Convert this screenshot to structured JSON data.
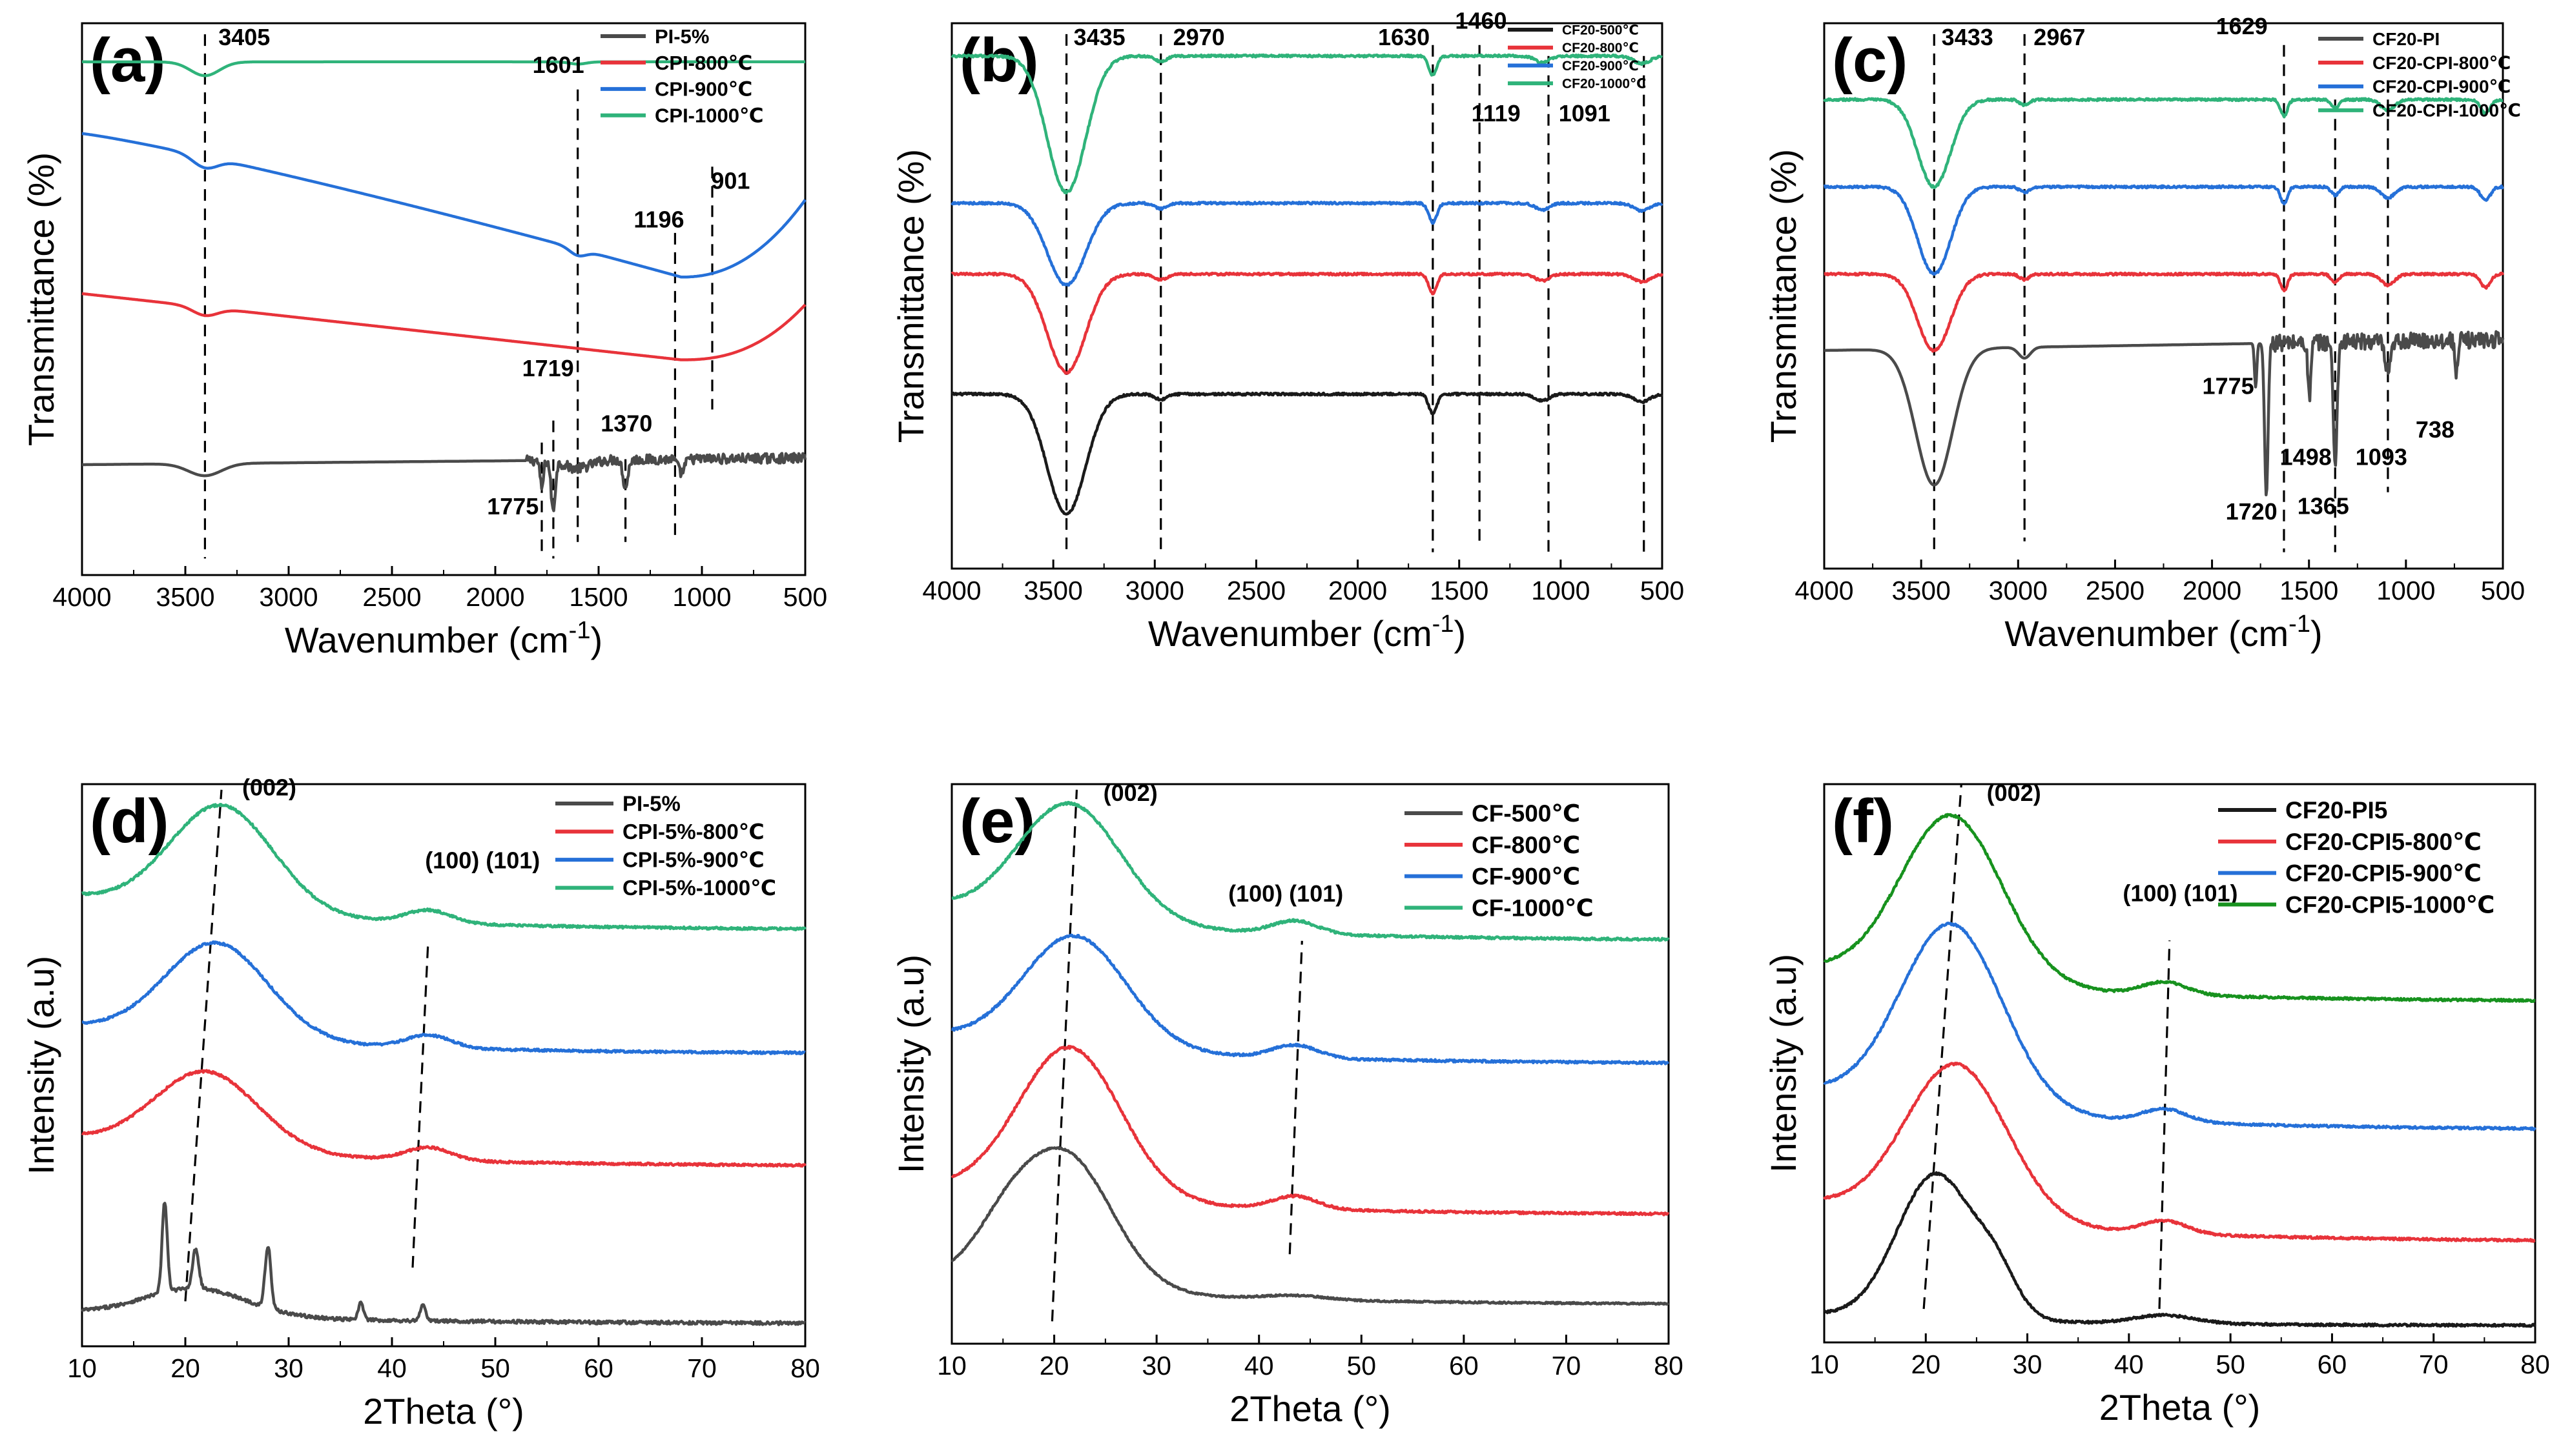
{
  "figure": {
    "colors": {
      "black": "#1a1a1a",
      "gray": "#4a4a4a",
      "red": "#e8333a",
      "blue": "#2570d8",
      "green": "#2fb37a",
      "dkgreen": "#17921e"
    }
  },
  "chart_data": [
    {
      "id": "a",
      "panel_label": "(a)",
      "type": "line",
      "xlabel": "Wavenumber (cm-1)",
      "ylabel": "Transmittance (%)",
      "xlim": [
        4000,
        500
      ],
      "xticks": [
        4000,
        3500,
        3000,
        2500,
        2000,
        1500,
        1000,
        500
      ],
      "xticklabels": [
        "4000",
        "3500",
        "3000",
        "2500",
        "2000",
        "1500",
        "1000",
        "500"
      ],
      "ylim": [
        0,
        100
      ],
      "y_ticks_shown": false,
      "legend_items": [
        "PI-5%",
        "CPI-800℃",
        "CPI-900℃",
        "CPI-1000℃"
      ],
      "annotations": [
        "3405",
        "1601",
        "1196",
        "901",
        "1719",
        "1370",
        "1775"
      ],
      "series": [
        {
          "name": "PI-5%",
          "color": "gray",
          "kind": "pi_ftir",
          "baseline": 20,
          "x0": 3405
        },
        {
          "name": "CPI-800℃",
          "color": "red",
          "kind": "ftir_a800",
          "baseline": 50
        },
        {
          "name": "CPI-900℃",
          "color": "blue",
          "kind": "ftir_a900",
          "baseline": 76
        },
        {
          "name": "CPI-1000℃",
          "color": "green",
          "kind": "ftir_flat",
          "baseline": 93,
          "x0": 3405
        }
      ]
    },
    {
      "id": "b",
      "panel_label": "(b)",
      "type": "line",
      "xlabel": "Wavenumber (cm-1)",
      "ylabel": "Transmittance (%)",
      "xlim": [
        4000,
        500
      ],
      "xticks": [
        4000,
        3500,
        3000,
        2500,
        2000,
        1500,
        1000,
        500
      ],
      "xticklabels": [
        "4000",
        "3500",
        "3000",
        "2500",
        "2000",
        "1500",
        "1000",
        "500"
      ],
      "ylim": [
        0,
        100
      ],
      "y_ticks_shown": false,
      "legend_items": [
        "CF20-500℃",
        "CF20-800℃",
        "CF20-900℃",
        "CF20-1000℃"
      ],
      "annotations": [
        "3435",
        "2970",
        "1630",
        "1460",
        "1119",
        "1091"
      ],
      "series": [
        {
          "name": "CF20-500℃",
          "color": "black",
          "kind": "ftir_cf",
          "baseline": 32,
          "depth": 22,
          "x0": 3435
        },
        {
          "name": "CF20-800℃",
          "color": "red",
          "kind": "ftir_cf",
          "baseline": 54,
          "depth": 18,
          "x0": 3435
        },
        {
          "name": "CF20-900℃",
          "color": "blue",
          "kind": "ftir_cf",
          "baseline": 67,
          "depth": 15,
          "x0": 3435
        },
        {
          "name": "CF20-1000℃",
          "color": "green",
          "kind": "ftir_cf",
          "baseline": 94,
          "depth": 25,
          "x0": 3435
        }
      ]
    },
    {
      "id": "c",
      "panel_label": "(c)",
      "type": "line",
      "xlabel": "Wavenumber (cm-1)",
      "ylabel": "Transmittance (%)",
      "xlim": [
        4000,
        500
      ],
      "xticks": [
        4000,
        3500,
        3000,
        2500,
        2000,
        1500,
        1000,
        500
      ],
      "xticklabels": [
        "4000",
        "3500",
        "3000",
        "2500",
        "2000",
        "1500",
        "1000",
        "500"
      ],
      "ylim": [
        0,
        100
      ],
      "y_ticks_shown": false,
      "legend_items": [
        "CF20-PI",
        "CF20-CPI-800℃",
        "CF20-CPI-900℃",
        "CF20-CPI-1000℃"
      ],
      "annotations": [
        "3433",
        "2967",
        "1629",
        "1775",
        "1498",
        "1093",
        "738",
        "1720",
        "1365"
      ],
      "series": [
        {
          "name": "CF20-PI",
          "color": "gray",
          "kind": "pi_c",
          "baseline": 40,
          "depth": 25,
          "x0": 3433
        },
        {
          "name": "CF20-CPI-800℃",
          "color": "red",
          "kind": "ftir_c",
          "baseline": 54,
          "depth": 14,
          "x0": 3433
        },
        {
          "name": "CF20-CPI-900℃",
          "color": "blue",
          "kind": "ftir_c",
          "baseline": 70,
          "depth": 16,
          "x0": 3433
        },
        {
          "name": "CF20-CPI-1000℃",
          "color": "green",
          "kind": "ftir_c",
          "baseline": 86,
          "depth": 16,
          "x0": 3433
        }
      ]
    },
    {
      "id": "d",
      "panel_label": "(d)",
      "type": "line",
      "xlabel": "2Theta (°)",
      "ylabel": "Intensity (a.u)",
      "xlim": [
        10,
        80
      ],
      "xticks": [
        10,
        20,
        30,
        40,
        50,
        60,
        70,
        80
      ],
      "xticklabels": [
        "10",
        "20",
        "30",
        "40",
        "50",
        "60",
        "70",
        "80"
      ],
      "ylim": [
        0,
        100
      ],
      "y_ticks_shown": false,
      "legend_items": [
        "PI-5%",
        "CPI-5%-800℃",
        "CPI-5%-900℃",
        "CPI-5%-1000℃"
      ],
      "annotations": [
        "(002)",
        "(100) (101)"
      ],
      "series": [
        {
          "name": "PI-5%",
          "color": "gray",
          "kind": "xrd_pi",
          "base": 4,
          "h": 16
        },
        {
          "name": "CPI-5%-800℃",
          "color": "red",
          "kind": "xrd",
          "base": 32,
          "h": 14,
          "x0": 22,
          "tail": 5
        },
        {
          "name": "CPI-5%-900℃",
          "color": "blue",
          "kind": "xrd",
          "base": 52,
          "h": 17,
          "x0": 23,
          "tail": 5
        },
        {
          "name": "CPI-5%-1000℃",
          "color": "green",
          "kind": "xrd",
          "base": 74,
          "h": 19,
          "x0": 23.5,
          "tail": 6
        }
      ]
    },
    {
      "id": "e",
      "panel_label": "(e)",
      "type": "line",
      "xlabel": "2Theta (°)",
      "ylabel": "Intensity (a.u)",
      "xlim": [
        10,
        80
      ],
      "xticks": [
        10,
        20,
        30,
        40,
        50,
        60,
        70,
        80
      ],
      "xticklabels": [
        "10",
        "20",
        "30",
        "40",
        "50",
        "60",
        "70",
        "80"
      ],
      "ylim": [
        0,
        100
      ],
      "y_ticks_shown": false,
      "legend_items": [
        "CF-500℃",
        "CF-800℃",
        "CF-900℃",
        "CF-1000℃"
      ],
      "annotations": [
        "(002)",
        "(100) (101)"
      ],
      "series": [
        {
          "name": "CF-500℃",
          "color": "gray",
          "kind": "xrd_cf500",
          "base": 7,
          "h": 24
        },
        {
          "name": "CF-800℃",
          "color": "red",
          "kind": "xrd",
          "base": 23,
          "h": 27,
          "x0": 21.5,
          "tail": 5
        },
        {
          "name": "CF-900℃",
          "color": "blue",
          "kind": "xrd",
          "base": 50,
          "h": 20,
          "x0": 22,
          "tail": 5
        },
        {
          "name": "CF-1000℃",
          "color": "green",
          "kind": "xrd",
          "base": 72,
          "h": 21,
          "x0": 21.5,
          "tail": 6
        }
      ]
    },
    {
      "id": "f",
      "panel_label": "(f)",
      "type": "line",
      "xlabel": "2Theta (°)",
      "ylabel": "Intensity (a.u)",
      "xlim": [
        10,
        80
      ],
      "xticks": [
        10,
        20,
        30,
        40,
        50,
        60,
        70,
        80
      ],
      "xticklabels": [
        "10",
        "20",
        "30",
        "40",
        "50",
        "60",
        "70",
        "80"
      ],
      "ylim": [
        0,
        100
      ],
      "y_ticks_shown": false,
      "legend_items": [
        "CF20-PI5",
        "CF20-CPI5-800℃",
        "CF20-CPI5-900℃",
        "CF20-CPI5-1000℃"
      ],
      "annotations": [
        "(002)",
        "(100) (101)"
      ],
      "series": [
        {
          "name": "CF20-PI5",
          "color": "black",
          "kind": "xrd_f_pi",
          "base": 3,
          "h": 26
        },
        {
          "name": "CF20-CPI5-800℃",
          "color": "red",
          "kind": "xrd",
          "base": 18,
          "h": 28,
          "x0": 23,
          "tail": 7
        },
        {
          "name": "CF20-CPI5-900℃",
          "color": "blue",
          "kind": "xrd",
          "base": 38,
          "h": 33,
          "x0": 22.5,
          "tail": 7
        },
        {
          "name": "CF20-CPI5-1000℃",
          "color": "dkgreen",
          "kind": "xrd",
          "base": 61,
          "h": 30,
          "x0": 22.5,
          "tail": 6
        }
      ]
    }
  ]
}
